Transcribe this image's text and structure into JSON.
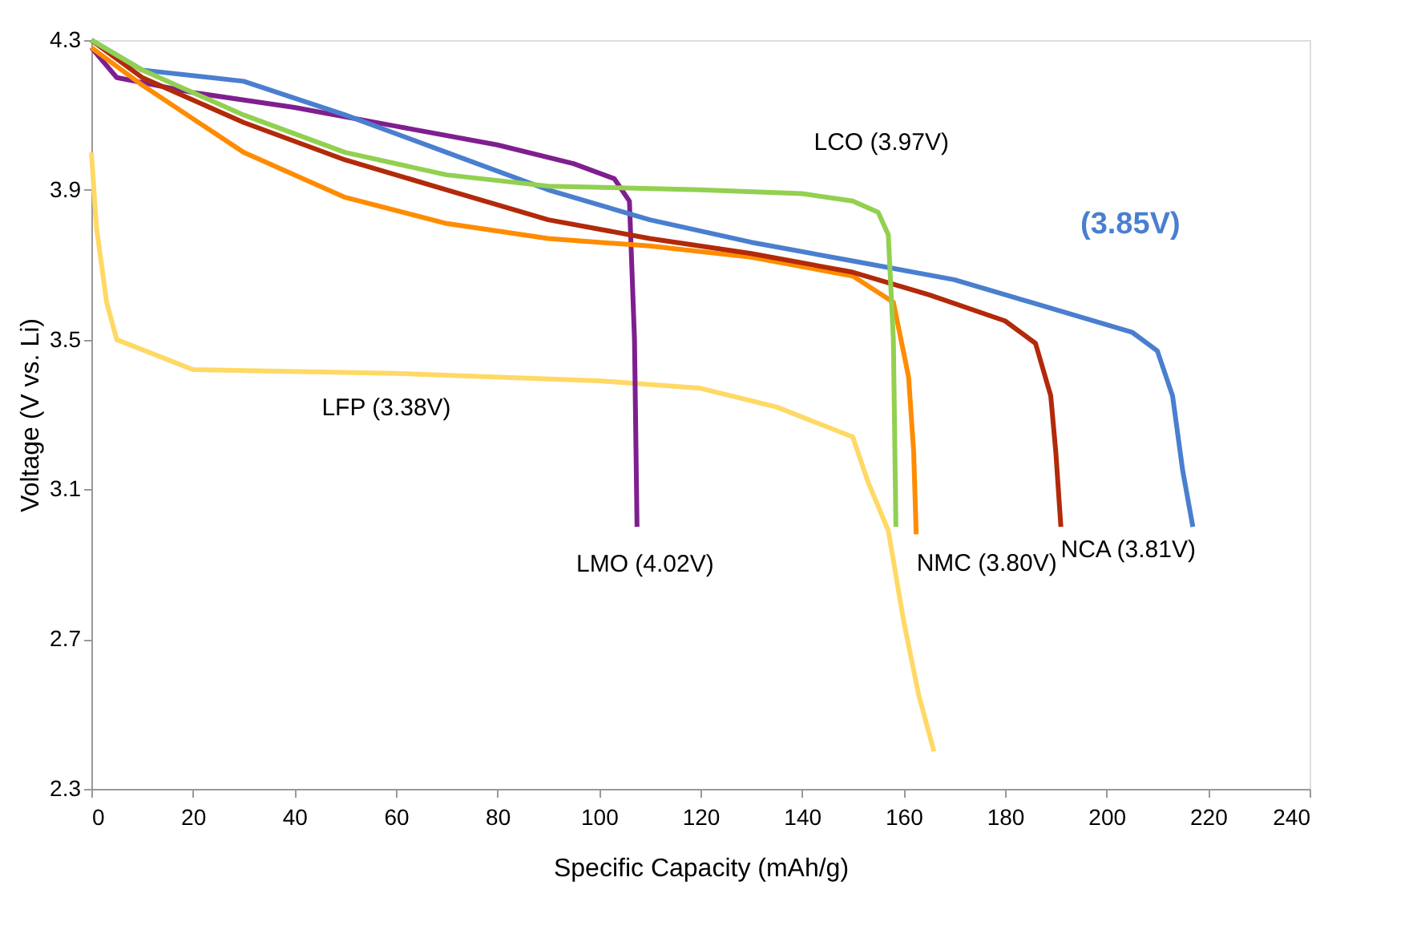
{
  "chart_data": {
    "type": "line",
    "xlabel": "Specific Capacity (mAh/g)",
    "ylabel": "Voltage (V vs. Li)",
    "xlim": [
      0,
      240
    ],
    "xticks": [
      0,
      20,
      40,
      60,
      80,
      100,
      120,
      140,
      160,
      180,
      200,
      220,
      240
    ],
    "ylim": [
      2.3,
      4.3
    ],
    "yticks": [
      2.3,
      2.7,
      3.1,
      3.5,
      3.9,
      4.3
    ],
    "grid": false,
    "marker": "none",
    "line_style": "solid",
    "series": [
      {
        "name": "LFP (3.38V)",
        "color": "#ffd966",
        "x": [
          0,
          1,
          3,
          5,
          20,
          60,
          100,
          120,
          135,
          150,
          153,
          157,
          160,
          163,
          166
        ],
        "values": [
          4.0,
          3.8,
          3.6,
          3.5,
          3.42,
          3.41,
          3.39,
          3.37,
          3.32,
          3.24,
          3.12,
          2.99,
          2.75,
          2.55,
          2.4
        ]
      },
      {
        "name": "LMO (4.02V)",
        "color": "#7f1f8f",
        "x": [
          0,
          5,
          20,
          40,
          60,
          80,
          95,
          103,
          106,
          107,
          107.5
        ],
        "values": [
          4.28,
          4.2,
          4.16,
          4.12,
          4.07,
          4.02,
          3.97,
          3.93,
          3.87,
          3.5,
          3.0
        ]
      },
      {
        "name": "NMC (3.80V)",
        "color": "#ff8c00",
        "x": [
          0,
          10,
          30,
          50,
          70,
          90,
          110,
          130,
          150,
          158,
          161,
          162,
          162.5
        ],
        "values": [
          4.28,
          4.18,
          4.0,
          3.88,
          3.81,
          3.77,
          3.75,
          3.72,
          3.67,
          3.6,
          3.4,
          3.2,
          2.98
        ]
      },
      {
        "name": "NCA (3.81V)",
        "color": "#b22a0a",
        "x": [
          0,
          10,
          30,
          50,
          70,
          90,
          110,
          130,
          150,
          165,
          180,
          186,
          189,
          190,
          191
        ],
        "values": [
          4.3,
          4.2,
          4.08,
          3.98,
          3.9,
          3.82,
          3.77,
          3.73,
          3.68,
          3.62,
          3.55,
          3.49,
          3.35,
          3.2,
          3.0
        ]
      },
      {
        "name": "(3.85V)",
        "color": "#4a7fcf",
        "x": [
          0,
          10,
          30,
          50,
          70,
          90,
          110,
          130,
          150,
          170,
          185,
          195,
          205,
          210,
          213,
          215,
          217
        ],
        "values": [
          4.3,
          4.22,
          4.19,
          4.1,
          4.0,
          3.9,
          3.82,
          3.76,
          3.71,
          3.66,
          3.6,
          3.56,
          3.52,
          3.47,
          3.35,
          3.15,
          3.0
        ]
      },
      {
        "name": "LCO (3.97V)",
        "color": "#92d050",
        "x": [
          0,
          10,
          30,
          50,
          70,
          90,
          120,
          140,
          150,
          155,
          157,
          158,
          158.5
        ],
        "values": [
          4.3,
          4.22,
          4.1,
          4.0,
          3.94,
          3.91,
          3.9,
          3.89,
          3.87,
          3.84,
          3.78,
          3.5,
          3.0
        ]
      }
    ]
  }
}
